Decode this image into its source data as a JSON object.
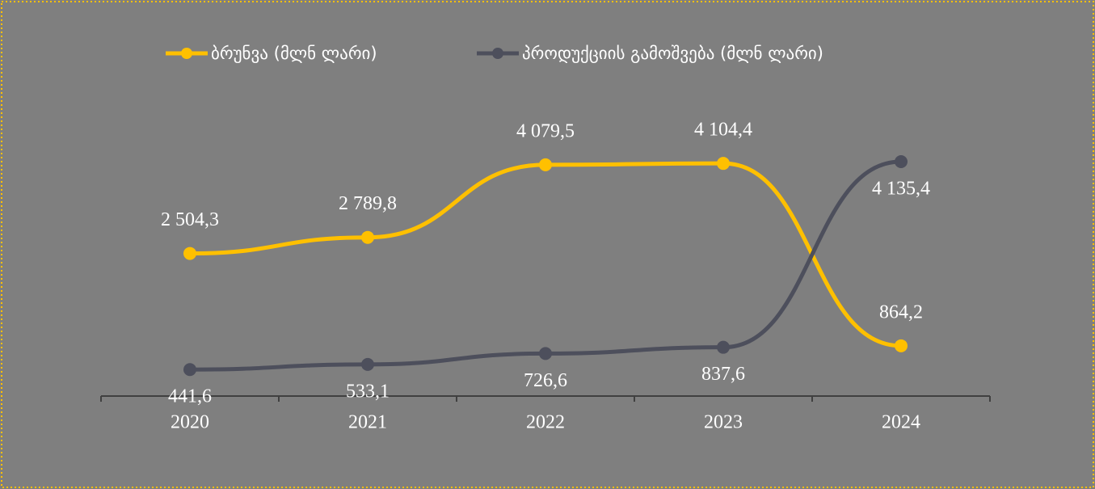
{
  "chart_data": {
    "type": "line",
    "categories": [
      "2020",
      "2021",
      "2022",
      "2023",
      "2024"
    ],
    "series": [
      {
        "name": "ბრუნვა (მლნ ლარი)",
        "color": "#ffc000",
        "values": [
          2504.3,
          2789.8,
          4079.5,
          4104.4,
          864.2
        ],
        "value_labels": [
          "2 504,3",
          "2 789,8",
          "4 079,5",
          "4 104,4",
          "864,2"
        ]
      },
      {
        "name": "პროდუქციის გამოშვება (მლნ ლარი)",
        "color": "#4d4f5c",
        "values": [
          441.6,
          533.1,
          726.6,
          837.6,
          4135.4
        ],
        "value_labels": [
          "441,6",
          "533,1",
          "726,6",
          "837,6",
          "4 135,4"
        ]
      }
    ]
  }
}
